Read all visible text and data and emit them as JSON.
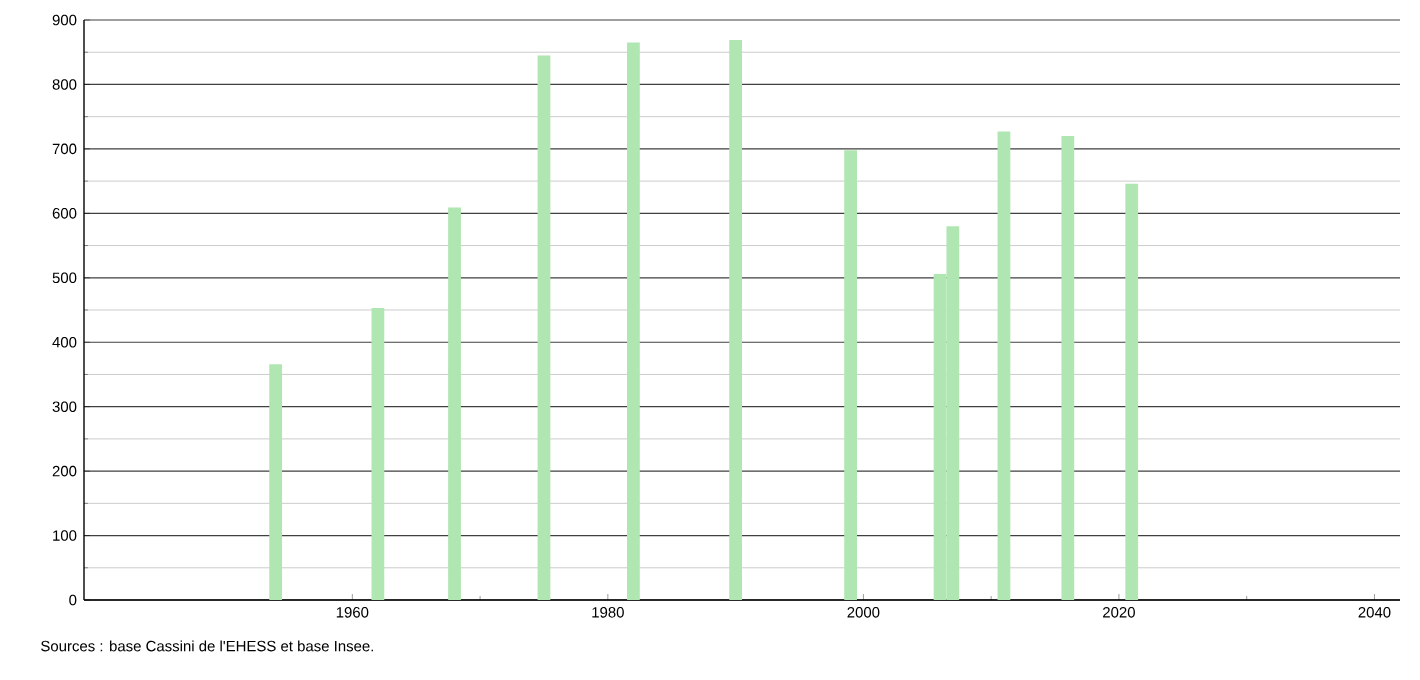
{
  "chart_data": {
    "type": "bar",
    "x": [
      1954,
      1962,
      1968,
      1975,
      1982,
      1990,
      1999,
      2006,
      2007,
      2011,
      2016,
      2021
    ],
    "values": [
      366,
      453,
      609,
      845,
      865,
      869,
      698,
      506,
      580,
      727,
      720,
      646
    ],
    "color": "#b0e6b2",
    "xlim": [
      1939,
      2042
    ],
    "xticks": [
      1960,
      1980,
      2000,
      2020,
      2040
    ],
    "ylim": [
      0,
      900
    ],
    "yticks": [
      0,
      100,
      200,
      300,
      400,
      500,
      600,
      700,
      800,
      900
    ],
    "grid": "y",
    "annotations": [
      "Sources : base Cassini de l'EHESS et base Insee."
    ]
  }
}
